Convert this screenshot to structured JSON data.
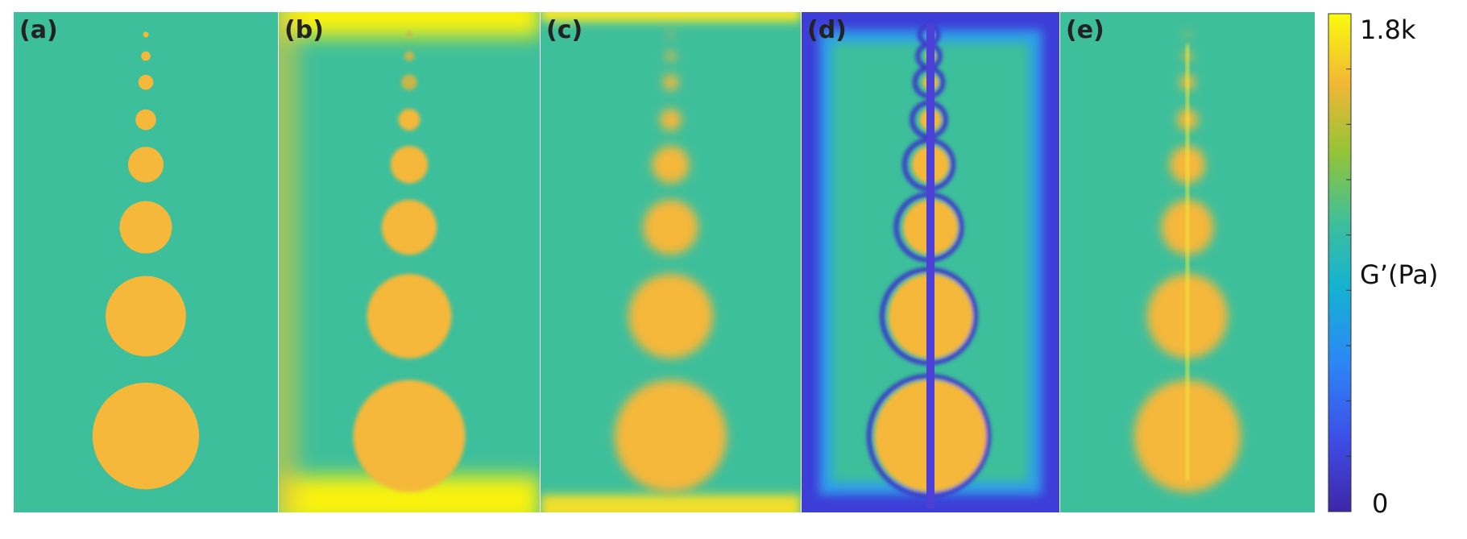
{
  "panels": [
    {
      "label": "(a)"
    },
    {
      "label": "(b)"
    },
    {
      "label": "(c)"
    },
    {
      "label": "(d)"
    },
    {
      "label": "(e)"
    }
  ],
  "colorbar": {
    "label": "G’(Pa)",
    "max_label": "1.8k",
    "min_label": "0"
  }
}
